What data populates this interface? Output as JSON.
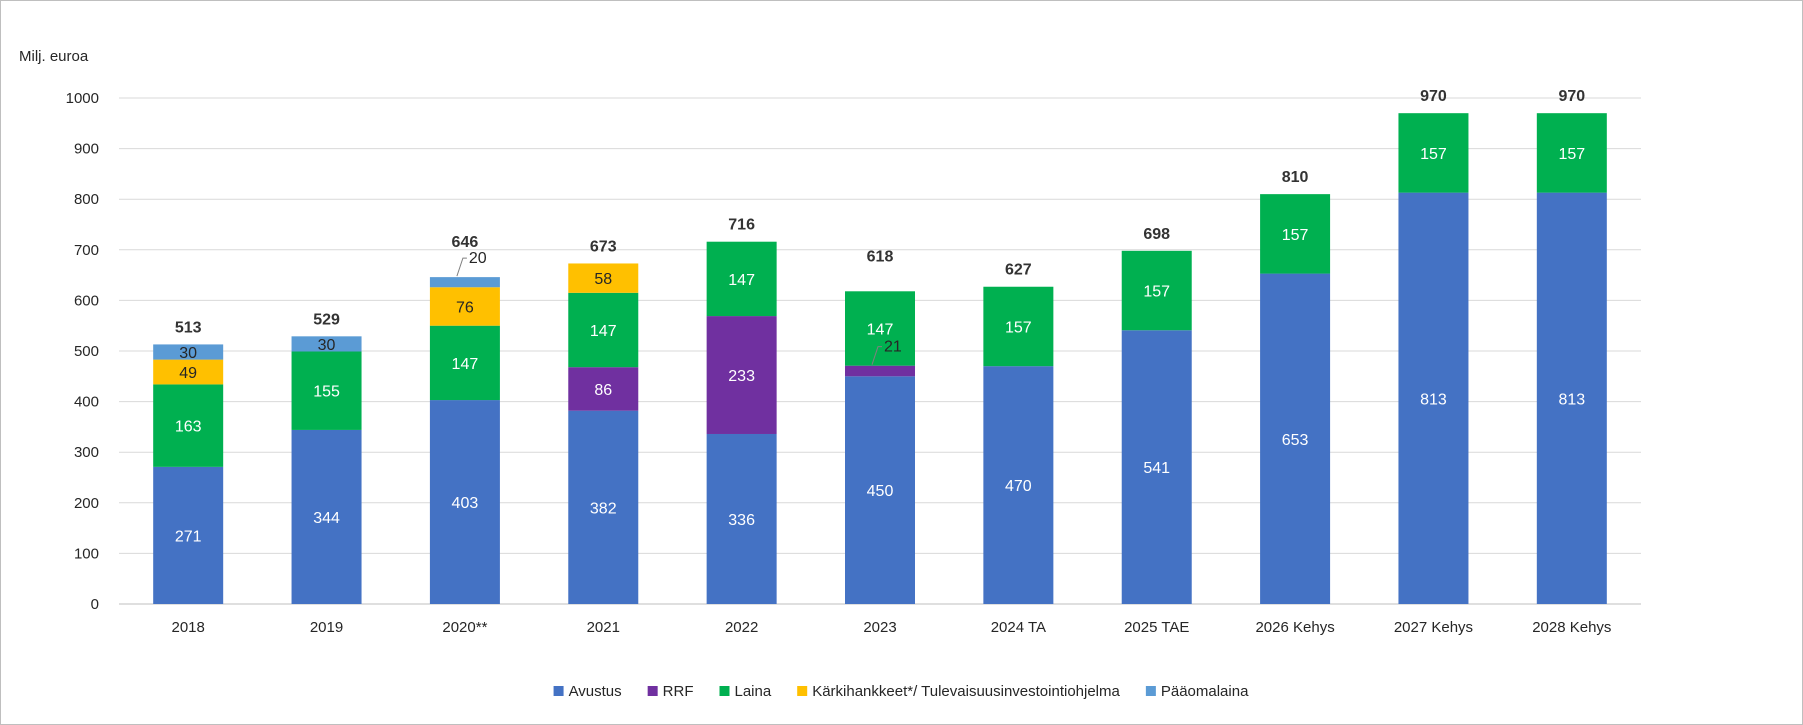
{
  "chart_data": {
    "type": "bar",
    "stacked": true,
    "ylabel": "Milj. euroa",
    "ylim": [
      0,
      1000
    ],
    "yticks": [
      0,
      100,
      200,
      300,
      400,
      500,
      600,
      700,
      800,
      900,
      1000
    ],
    "grid": true,
    "legend_position": "bottom",
    "categories": [
      "2018",
      "2019",
      "2020**",
      "2021",
      "2022",
      "2023",
      "2024 TA",
      "2025 TAE",
      "2026 Kehys",
      "2027 Kehys",
      "2028 Kehys"
    ],
    "series": [
      {
        "name": "Avustus",
        "color": "#4472c4",
        "label_color": "#ffffff",
        "values": [
          271,
          344,
          403,
          382,
          336,
          450,
          470,
          541,
          653,
          813,
          813
        ]
      },
      {
        "name": "RRF",
        "color": "#7030a0",
        "label_color": "#ffffff",
        "values": [
          0,
          0,
          0,
          86,
          233,
          21,
          0,
          0,
          0,
          0,
          0
        ]
      },
      {
        "name": "Laina",
        "color": "#00b050",
        "label_color": "#ffffff",
        "values": [
          163,
          155,
          147,
          147,
          147,
          147,
          157,
          157,
          157,
          157,
          157
        ]
      },
      {
        "name": "Kärkihankkeet*/ Tulevaisuusinvestointiohjelma",
        "color": "#ffc000",
        "label_color": "#262626",
        "values": [
          49,
          0,
          76,
          58,
          0,
          0,
          0,
          0,
          0,
          0,
          0
        ]
      },
      {
        "name": "Pääomalaina",
        "color": "#5b9bd5",
        "label_color": "#262626",
        "values": [
          30,
          30,
          20,
          0,
          0,
          0,
          0,
          0,
          0,
          0,
          0
        ]
      }
    ],
    "totals": [
      513,
      529,
      646,
      673,
      716,
      618,
      627,
      698,
      810,
      970,
      970
    ]
  }
}
